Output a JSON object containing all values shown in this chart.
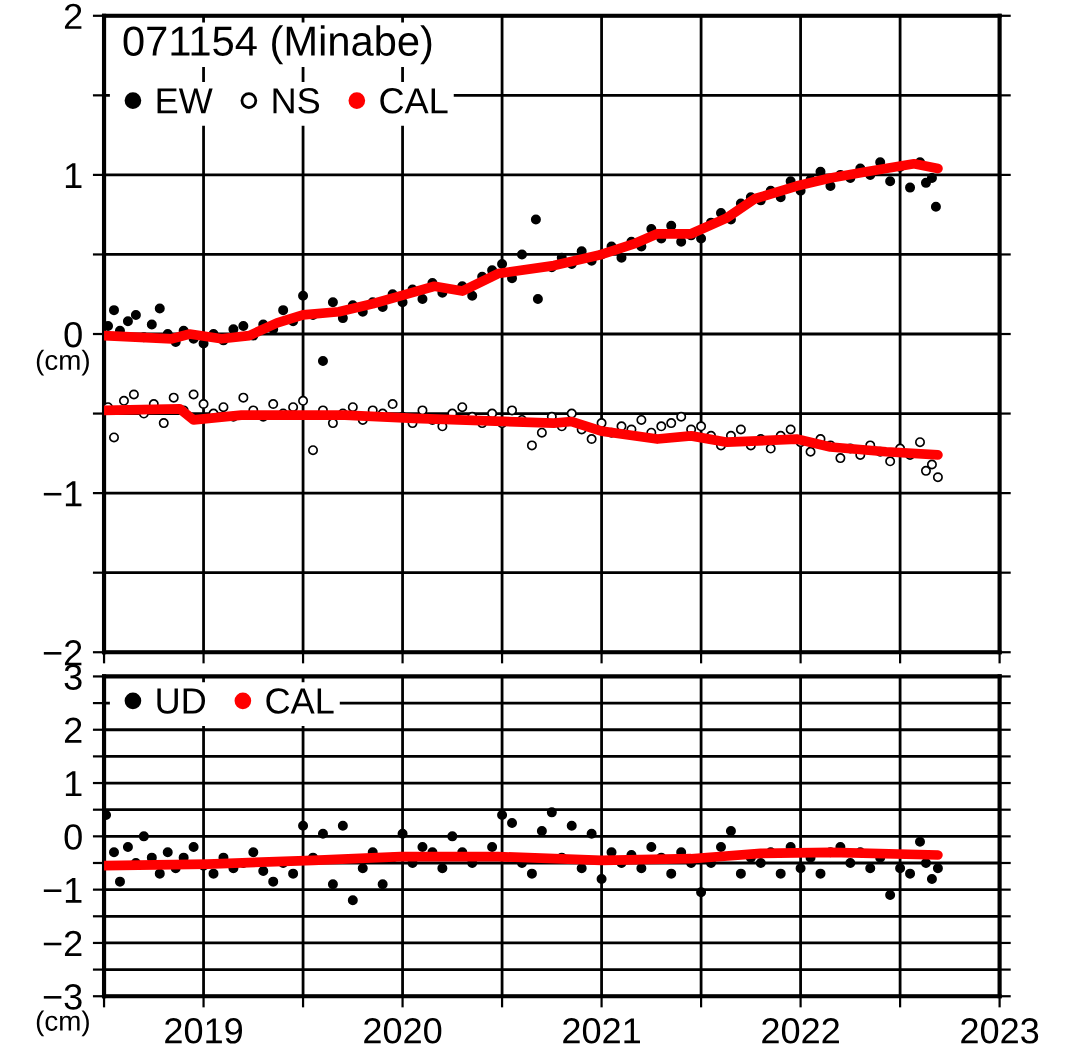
{
  "chart_data": [
    {
      "type": "scatter",
      "title": "071154 (Minabe)",
      "annotations": [
        "(cm)"
      ],
      "legend": "top left",
      "grid": true,
      "tick_labels": "y",
      "xlim": [
        2018.5,
        2023
      ],
      "xticks": [
        {
          "value": 2018.5,
          "label": null
        },
        2019,
        {
          "value": 2019.5,
          "label": null
        },
        2020,
        {
          "value": 2020.5,
          "label": null
        },
        2021,
        {
          "value": 2021.5,
          "label": null
        },
        2022,
        {
          "value": 2022.5,
          "label": null
        },
        2023
      ],
      "ylim": [
        -2,
        2
      ],
      "yticks": [
        {
          "value": -2,
          "label": "−2"
        },
        {
          "value": -1.5,
          "label": null
        },
        {
          "value": -1,
          "label": "−1"
        },
        {
          "value": -0.5,
          "label": null
        },
        0,
        {
          "value": 0.5,
          "label": null
        },
        1,
        {
          "value": 1.5,
          "label": null
        },
        2
      ],
      "series": [
        {
          "name": "EW",
          "marker": "circle",
          "color": "#000000",
          "x": [
            2018.52,
            2018.55,
            2018.58,
            2018.62,
            2018.66,
            2018.7,
            2018.74,
            2018.78,
            2018.82,
            2018.86,
            2018.9,
            2018.95,
            2019.0,
            2019.05,
            2019.1,
            2019.15,
            2019.2,
            2019.25,
            2019.3,
            2019.35,
            2019.4,
            2019.45,
            2019.5,
            2019.55,
            2019.6,
            2019.65,
            2019.7,
            2019.75,
            2019.8,
            2019.85,
            2019.9,
            2019.95,
            2020.0,
            2020.05,
            2020.1,
            2020.15,
            2020.2,
            2020.3,
            2020.35,
            2020.4,
            2020.45,
            2020.5,
            2020.55,
            2020.6,
            2020.67,
            2020.68,
            2020.75,
            2020.8,
            2020.85,
            2020.9,
            2020.95,
            2021.0,
            2021.05,
            2021.1,
            2021.15,
            2021.2,
            2021.25,
            2021.3,
            2021.35,
            2021.4,
            2021.45,
            2021.5,
            2021.55,
            2021.6,
            2021.65,
            2021.7,
            2021.75,
            2021.8,
            2021.85,
            2021.9,
            2021.95,
            2022.0,
            2022.05,
            2022.1,
            2022.15,
            2022.2,
            2022.25,
            2022.3,
            2022.35,
            2022.4,
            2022.45,
            2022.5,
            2022.55,
            2022.6,
            2022.63,
            2022.66,
            2022.68
          ],
          "values": [
            0.05,
            0.15,
            0.02,
            0.08,
            0.12,
            -0.02,
            0.06,
            0.16,
            0.0,
            -0.05,
            0.02,
            -0.03,
            -0.06,
            0.0,
            -0.04,
            0.03,
            0.05,
            -0.01,
            0.06,
            0.03,
            0.15,
            0.08,
            0.24,
            0.12,
            -0.17,
            0.2,
            0.1,
            0.18,
            0.14,
            0.2,
            0.17,
            0.25,
            0.2,
            0.28,
            0.22,
            0.32,
            0.26,
            0.3,
            0.24,
            0.36,
            0.4,
            0.44,
            0.35,
            0.5,
            0.72,
            0.22,
            0.42,
            0.48,
            0.44,
            0.52,
            0.46,
            0.5,
            0.55,
            0.48,
            0.58,
            0.55,
            0.66,
            0.6,
            0.68,
            0.58,
            0.62,
            0.6,
            0.7,
            0.76,
            0.72,
            0.82,
            0.86,
            0.84,
            0.9,
            0.86,
            0.96,
            0.9,
            0.97,
            1.02,
            0.93,
            1.0,
            0.98,
            1.04,
            1.0,
            1.08,
            0.96,
            1.05,
            0.92,
            1.08,
            0.95,
            0.98,
            0.8
          ]
        },
        {
          "name": "NS",
          "marker": "circle",
          "color": "#ffffff",
          "x": [
            2018.52,
            2018.55,
            2018.6,
            2018.65,
            2018.7,
            2018.75,
            2018.8,
            2018.85,
            2018.9,
            2018.95,
            2019.0,
            2019.05,
            2019.1,
            2019.15,
            2019.2,
            2019.25,
            2019.3,
            2019.35,
            2019.4,
            2019.45,
            2019.5,
            2019.55,
            2019.6,
            2019.65,
            2019.7,
            2019.75,
            2019.8,
            2019.85,
            2019.9,
            2019.95,
            2020.0,
            2020.05,
            2020.1,
            2020.15,
            2020.2,
            2020.25,
            2020.3,
            2020.35,
            2020.4,
            2020.45,
            2020.5,
            2020.55,
            2020.6,
            2020.65,
            2020.7,
            2020.75,
            2020.8,
            2020.85,
            2020.9,
            2020.95,
            2021.0,
            2021.05,
            2021.1,
            2021.15,
            2021.2,
            2021.25,
            2021.3,
            2021.35,
            2021.4,
            2021.45,
            2021.5,
            2021.55,
            2021.6,
            2021.65,
            2021.7,
            2021.75,
            2021.8,
            2021.85,
            2021.9,
            2021.95,
            2022.0,
            2022.05,
            2022.1,
            2022.15,
            2022.2,
            2022.25,
            2022.3,
            2022.35,
            2022.4,
            2022.45,
            2022.5,
            2022.55,
            2022.6,
            2022.63,
            2022.66,
            2022.69
          ],
          "values": [
            -0.46,
            -0.65,
            -0.42,
            -0.38,
            -0.5,
            -0.44,
            -0.56,
            -0.4,
            -0.48,
            -0.38,
            -0.44,
            -0.5,
            -0.46,
            -0.52,
            -0.4,
            -0.48,
            -0.52,
            -0.44,
            -0.5,
            -0.46,
            -0.42,
            -0.73,
            -0.48,
            -0.56,
            -0.5,
            -0.46,
            -0.54,
            -0.48,
            -0.5,
            -0.44,
            -0.52,
            -0.56,
            -0.48,
            -0.54,
            -0.58,
            -0.5,
            -0.46,
            -0.52,
            -0.56,
            -0.5,
            -0.56,
            -0.48,
            -0.54,
            -0.7,
            -0.62,
            -0.52,
            -0.58,
            -0.5,
            -0.6,
            -0.66,
            -0.56,
            -0.62,
            -0.58,
            -0.6,
            -0.54,
            -0.62,
            -0.58,
            -0.56,
            -0.52,
            -0.6,
            -0.58,
            -0.64,
            -0.7,
            -0.64,
            -0.6,
            -0.7,
            -0.66,
            -0.72,
            -0.64,
            -0.6,
            -0.68,
            -0.74,
            -0.66,
            -0.7,
            -0.78,
            -0.72,
            -0.76,
            -0.7,
            -0.74,
            -0.8,
            -0.72,
            -0.76,
            -0.68,
            -0.86,
            -0.82,
            -0.9
          ]
        },
        {
          "name": "CAL",
          "type": "line",
          "marker": "none",
          "color": "#ff0000",
          "x": [
            2018.5,
            2018.84,
            2018.93,
            2019.09,
            2019.23,
            2019.37,
            2019.5,
            2019.68,
            2019.85,
            2019.99,
            2020.16,
            2020.3,
            2020.48,
            2020.76,
            2021.0,
            2021.17,
            2021.28,
            2021.45,
            2021.63,
            2021.77,
            2021.98,
            2022.15,
            2022.33,
            2022.57,
            2022.69
          ],
          "values": [
            -0.01,
            -0.03,
            0.0,
            -0.03,
            -0.01,
            0.07,
            0.12,
            0.14,
            0.19,
            0.24,
            0.3,
            0.27,
            0.38,
            0.43,
            0.5,
            0.57,
            0.63,
            0.63,
            0.73,
            0.85,
            0.93,
            0.98,
            1.02,
            1.07,
            1.04
          ]
        },
        {
          "type": "line",
          "marker": "none",
          "color": "#ff0000",
          "x": [
            2018.5,
            2018.88,
            2018.95,
            2019.19,
            2019.71,
            2020.06,
            2020.76,
            2020.85,
            2021.0,
            2021.28,
            2021.45,
            2021.63,
            2021.98,
            2022.15,
            2022.43,
            2022.69
          ],
          "values": [
            -0.48,
            -0.47,
            -0.54,
            -0.51,
            -0.51,
            -0.53,
            -0.56,
            -0.55,
            -0.61,
            -0.66,
            -0.64,
            -0.68,
            -0.66,
            -0.71,
            -0.74,
            -0.76
          ]
        }
      ]
    },
    {
      "type": "scatter",
      "annotations": [
        "(cm)"
      ],
      "legend": "top left",
      "grid": true,
      "xlim": [
        2018.5,
        2023
      ],
      "xticks": [
        {
          "value": 2018.5,
          "label": null
        },
        2019,
        {
          "value": 2019.5,
          "label": null
        },
        2020,
        {
          "value": 2020.5,
          "label": null
        },
        2021,
        {
          "value": 2021.5,
          "label": null
        },
        2022,
        {
          "value": 2022.5,
          "label": null
        },
        2023
      ],
      "ylim": [
        -3,
        3
      ],
      "yticks": [
        {
          "value": -3,
          "label": "−3"
        },
        {
          "value": -2.5,
          "label": null
        },
        {
          "value": -2,
          "label": "−2"
        },
        {
          "value": -1.5,
          "label": null
        },
        {
          "value": -1,
          "label": "−1"
        },
        {
          "value": -0.5,
          "label": null
        },
        0,
        {
          "value": 0.5,
          "label": null
        },
        1,
        {
          "value": 1.5,
          "label": null
        },
        2,
        {
          "value": 2.5,
          "label": null
        },
        3
      ],
      "series": [
        {
          "name": "UD",
          "marker": "circle",
          "color": "#000000",
          "x": [
            2018.51,
            2018.55,
            2018.58,
            2018.62,
            2018.66,
            2018.7,
            2018.74,
            2018.78,
            2018.82,
            2018.86,
            2018.9,
            2018.95,
            2019.0,
            2019.05,
            2019.1,
            2019.15,
            2019.2,
            2019.25,
            2019.3,
            2019.35,
            2019.4,
            2019.45,
            2019.5,
            2019.55,
            2019.6,
            2019.65,
            2019.7,
            2019.75,
            2019.8,
            2019.85,
            2019.9,
            2019.95,
            2020.0,
            2020.05,
            2020.1,
            2020.15,
            2020.2,
            2020.25,
            2020.3,
            2020.35,
            2020.45,
            2020.5,
            2020.55,
            2020.6,
            2020.65,
            2020.7,
            2020.75,
            2020.8,
            2020.85,
            2020.9,
            2020.95,
            2021.0,
            2021.05,
            2021.1,
            2021.15,
            2021.2,
            2021.25,
            2021.3,
            2021.35,
            2021.4,
            2021.45,
            2021.5,
            2021.55,
            2021.6,
            2021.65,
            2021.7,
            2021.75,
            2021.8,
            2021.85,
            2021.9,
            2021.95,
            2022.0,
            2022.05,
            2022.1,
            2022.15,
            2022.2,
            2022.25,
            2022.3,
            2022.35,
            2022.4,
            2022.45,
            2022.5,
            2022.55,
            2022.6,
            2022.63,
            2022.66,
            2022.69
          ],
          "values": [
            0.4,
            -0.3,
            -0.85,
            -0.2,
            -0.5,
            0.0,
            -0.4,
            -0.7,
            -0.3,
            -0.6,
            -0.4,
            -0.2,
            -0.55,
            -0.7,
            -0.4,
            -0.6,
            -0.5,
            -0.3,
            -0.65,
            -0.85,
            -0.5,
            -0.7,
            0.2,
            -0.4,
            0.05,
            -0.9,
            0.2,
            -1.2,
            -0.6,
            -0.3,
            -0.9,
            -0.4,
            0.05,
            -0.5,
            -0.2,
            -0.3,
            -0.6,
            0.0,
            -0.3,
            -0.5,
            -0.2,
            0.4,
            0.25,
            -0.5,
            -0.7,
            0.1,
            0.45,
            -0.4,
            0.2,
            -0.6,
            0.05,
            -0.8,
            -0.3,
            -0.5,
            -0.35,
            -0.6,
            -0.2,
            -0.4,
            -0.7,
            -0.3,
            -0.5,
            -1.05,
            -0.5,
            -0.2,
            0.1,
            -0.7,
            -0.4,
            -0.5,
            -0.3,
            -0.7,
            -0.2,
            -0.6,
            -0.4,
            -0.7,
            -0.3,
            -0.2,
            -0.5,
            -0.3,
            -0.6,
            -0.4,
            -1.1,
            -0.6,
            -0.7,
            -0.1,
            -0.5,
            -0.8,
            -0.6
          ]
        },
        {
          "name": "CAL",
          "type": "line",
          "marker": "none",
          "color": "#ff0000",
          "x": [
            2018.5,
            2019.02,
            2019.55,
            2019.99,
            2020.48,
            2021.0,
            2021.45,
            2021.8,
            2022.15,
            2022.69
          ],
          "values": [
            -0.55,
            -0.52,
            -0.45,
            -0.38,
            -0.38,
            -0.45,
            -0.42,
            -0.32,
            -0.3,
            -0.35
          ]
        }
      ]
    }
  ]
}
